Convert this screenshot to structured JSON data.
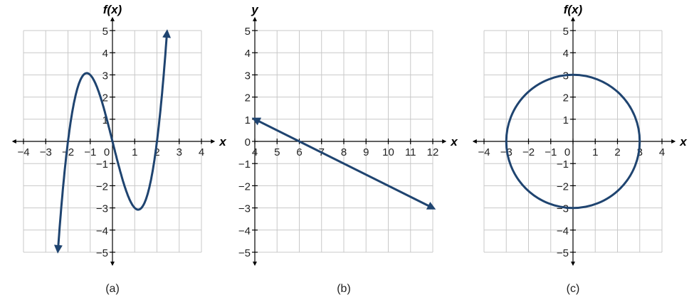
{
  "chart_data": [
    {
      "type": "line",
      "caption": "(a)",
      "xlabel": "x",
      "ylabel": "f(x)",
      "xlim": [
        -4,
        4
      ],
      "ylim": [
        -5,
        5
      ],
      "grid": true,
      "xticks": [
        "−4",
        "−3",
        "−2",
        "−1",
        "0",
        "1",
        "2",
        "3",
        "4"
      ],
      "yticks": [
        "−5",
        "−4",
        "−3",
        "−2",
        "−1",
        "1",
        "2",
        "3",
        "4",
        "5"
      ],
      "series": [
        {
          "function": "x^3 - 4x",
          "x_range": [
            -2.45,
            2.45
          ],
          "arrows": "both",
          "color": "#1f4470",
          "points": [
            [
              -2.45,
              -4.9
            ],
            [
              -2,
              0
            ],
            [
              -1.15,
              3.08
            ],
            [
              0,
              0
            ],
            [
              1.15,
              -3.08
            ],
            [
              2,
              0
            ],
            [
              2.45,
              4.9
            ]
          ]
        }
      ]
    },
    {
      "type": "line",
      "caption": "(b)",
      "xlabel": "x",
      "ylabel": "y",
      "xlim": [
        4,
        12
      ],
      "ylim": [
        -5,
        5
      ],
      "grid": true,
      "xticks": [
        "4",
        "5",
        "6",
        "7",
        "8",
        "9",
        "10",
        "11",
        "12"
      ],
      "yticks": [
        "−5",
        "−4",
        "−3",
        "−2",
        "−1",
        "0",
        "1",
        "2",
        "3",
        "4",
        "5"
      ],
      "series": [
        {
          "points": [
            [
              4,
              1
            ],
            [
              12,
              -3
            ]
          ],
          "arrows": "both",
          "color": "#1f4470"
        }
      ]
    },
    {
      "type": "line",
      "caption": "(c)",
      "xlabel": "x",
      "ylabel": "f(x)",
      "xlim": [
        -4,
        4
      ],
      "ylim": [
        -5,
        5
      ],
      "grid": true,
      "xticks": [
        "−4",
        "−3",
        "−2",
        "−1",
        "0",
        "1",
        "2",
        "3",
        "4"
      ],
      "yticks": [
        "−5",
        "−4",
        "−3",
        "−2",
        "−1",
        "1",
        "2",
        "3",
        "4",
        "5"
      ],
      "series": [
        {
          "shape": "circle",
          "center": [
            0,
            0
          ],
          "radius": 3,
          "color": "#1f4470"
        }
      ]
    }
  ]
}
